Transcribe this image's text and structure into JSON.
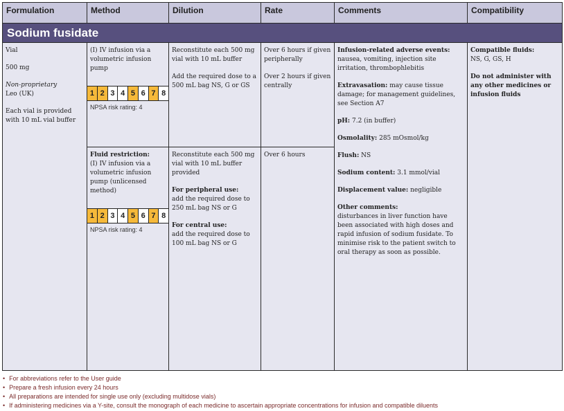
{
  "headers": [
    "Formulation",
    "Method",
    "Dilution",
    "Rate",
    "Comments",
    "Compatibility"
  ],
  "drug": "Sodium fusidate",
  "formulation": {
    "type": "Vial",
    "strength": "500 mg",
    "label": "Non-proprietary",
    "maker": "Leo (UK)",
    "note": "Each vial is provided with 10 mL vial buffer"
  },
  "rows": [
    {
      "method_title": "",
      "method": "(I) IV infusion via a volumetric infusion pump",
      "risk": {
        "cells": [
          "1",
          "2",
          "3",
          "4",
          "5",
          "6",
          "7",
          "8"
        ],
        "highlighted": [
          1,
          2,
          5,
          7
        ],
        "color": "#f6b93a",
        "rating": "NPSA risk rating: 4"
      },
      "dilution": [
        {
          "h": "",
          "t": "Reconstitute each 500 mg vial with 10 mL buffer"
        },
        {
          "h": "",
          "t": "Add the required dose to a 500 mL bag NS, G or GS"
        }
      ],
      "rate": [
        "Over 6 hours if given peripherally",
        "Over 2 hours if given centrally"
      ]
    },
    {
      "method_title": "Fluid restriction:",
      "method": "(I) IV infusion via a volumetric infusion pump (unlicensed method)",
      "risk": {
        "cells": [
          "1",
          "2",
          "3",
          "4",
          "5",
          "6",
          "7",
          "8"
        ],
        "highlighted": [
          1,
          2,
          5,
          7
        ],
        "rating": "NPSA risk rating: 4"
      },
      "dilution": [
        {
          "h": "",
          "t": "Reconstitute each 500 mg vial with 10 mL buffer provided"
        },
        {
          "h": "For peripheral use:",
          "t": "add the required dose to 250 mL bag NS or G"
        },
        {
          "h": "For central use:",
          "t": "add the required dose to 100 mL bag NS or G"
        }
      ],
      "rate": [
        "Over 6 hours"
      ]
    }
  ],
  "comments": [
    {
      "h": "Infusion-related adverse events:",
      "t": "nausea, vomiting, injection site irritation, thrombophlebitis"
    },
    {
      "h": "Extravasation:",
      "t": "may cause tissue damage; for management guidelines, see Section A7"
    },
    {
      "h": "pH:",
      "t": "7.2 (in buffer)"
    },
    {
      "h": "Osmolality:",
      "t": "285 mOsmol/kg"
    },
    {
      "h": "Flush:",
      "t": "NS"
    },
    {
      "h": "Sodium content:",
      "t": "3.1 mmol/vial"
    },
    {
      "h": "Displacement value:",
      "t": "negligible"
    },
    {
      "h": "Other comments:",
      "t": "disturbances in liver function have been associated with high doses and rapid infusion of sodium fusidate. To minimise risk to the patient switch to oral therapy as soon as possible."
    }
  ],
  "compatibility": {
    "h": "Compatible fluids:",
    "t": "NS, G, GS, H",
    "warning": "Do not administer with any other medicines or infusion fluids"
  },
  "footnotes": [
    "For abbreviations refer to the User guide",
    "Prepare a fresh infusion every 24 hours",
    "All preparations are intended for single use only (excluding multidose vials)",
    "If administering medicines via a Y-site, consult the monograph of each medicine to ascertain appropriate concentrations for infusion and compatible diluents"
  ]
}
